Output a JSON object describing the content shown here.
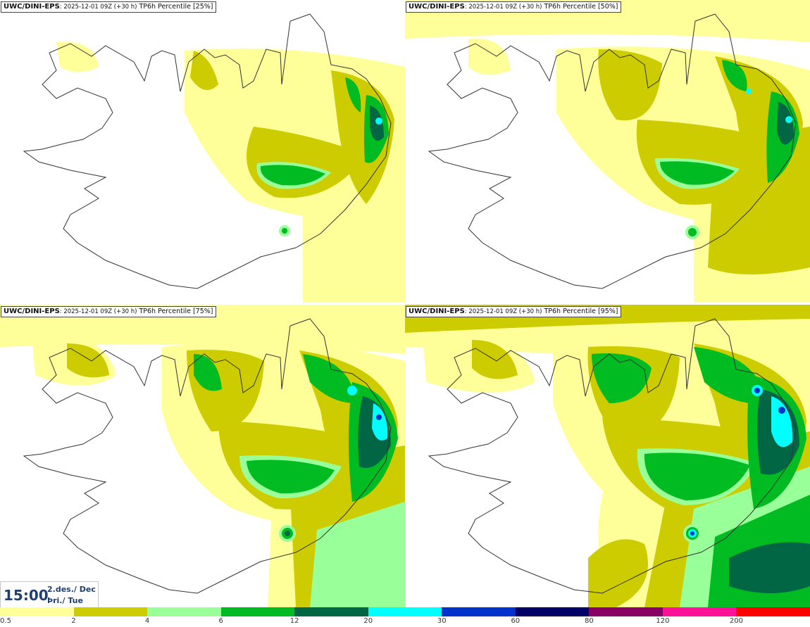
{
  "panels": [
    {
      "model": "UWC/DINI-EPS",
      "run": ": 2025-12-01 09Z (+30 h)",
      "title": " TP6h Percentile [25%]",
      "level": 1
    },
    {
      "model": "UWC/DINI-EPS",
      "run": ": 2025-12-01 09Z (+30 h)",
      "title": " TP6h Percentile [50%]",
      "level": 2
    },
    {
      "model": "UWC/DINI-EPS",
      "run": ": 2025-12-01 09Z (+30 h)",
      "title": " TP6h Percentile [75%]",
      "level": 3
    },
    {
      "model": "UWC/DINI-EPS",
      "run": ": 2025-12-01 09Z (+30 h)",
      "title": " TP6h Percentile [95%]",
      "level": 4
    }
  ],
  "valid_time": {
    "time": "15:00",
    "date": "2.des./ Dec",
    "weekday": "Þri./ Tue"
  },
  "legend": {
    "colors": [
      "#ffff99",
      "#cccc00",
      "#99ff99",
      "#00bb22",
      "#006644",
      "#00ffff",
      "#0033cc",
      "#000066",
      "#880066",
      "#ff1199",
      "#ff0000"
    ],
    "ticks": [
      "0.5",
      "2",
      "4",
      "6",
      "12",
      "20",
      "30",
      "60",
      "80",
      "120",
      "200"
    ]
  }
}
